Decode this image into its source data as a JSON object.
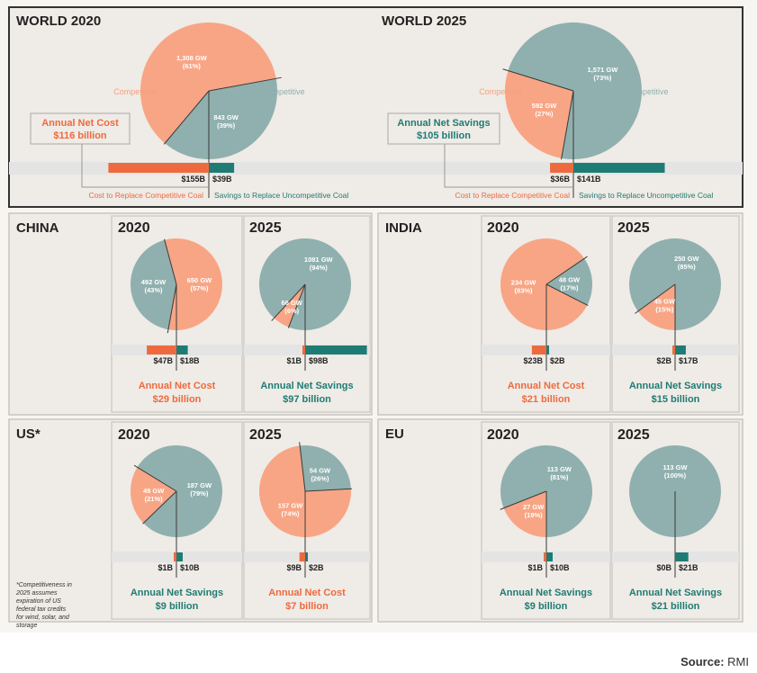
{
  "colors": {
    "competitive": "#f8a585",
    "uncompetitive": "#8fb0ae",
    "cost": "#ee6a3e",
    "savings": "#1e7c74",
    "panel": "#efebe6",
    "stripe": "#e4e4e4",
    "text": "#222222"
  },
  "footer": {
    "source_label": "Source:",
    "source_value": "RMI"
  },
  "panels": [
    {
      "id": "world",
      "label": "",
      "footnote": ""
    },
    {
      "id": "china",
      "label": "CHINA",
      "footnote": ""
    },
    {
      "id": "india",
      "label": "INDIA",
      "footnote": ""
    },
    {
      "id": "us",
      "label": "US*",
      "footnote": "*Competitiveness in 2025 assumes expiration of US federal tax credits for wind, solar, and storage"
    },
    {
      "id": "eu",
      "label": "EU",
      "footnote": ""
    }
  ],
  "chart_data": [
    {
      "type": "pie",
      "region": "WORLD",
      "title": "WORLD 2020",
      "slices": [
        {
          "label": "1,308 GW",
          "pct": "(61%)",
          "value": 1308,
          "share": 61,
          "category": "Competitive"
        },
        {
          "label": "843 GW",
          "pct": "(39%)",
          "value": 843,
          "share": 39,
          "category": "Uncompetitive"
        }
      ],
      "legend": {
        "competitive": "Competitive",
        "uncompetitive": "Uncompetitive"
      },
      "bar": {
        "cost": 155,
        "savings": 39,
        "cost_label": "$155B",
        "savings_label": "$39B",
        "cost_caption": "Cost to Replace Competitive Coal",
        "savings_caption": "Savings to Replace Uncompetitive Coal"
      },
      "net": {
        "kind": "cost",
        "title": "Annual Net Cost",
        "value": "$116 billion"
      }
    },
    {
      "type": "pie",
      "region": "WORLD",
      "title": "WORLD 2025",
      "slices": [
        {
          "label": "592 GW",
          "pct": "(27%)",
          "value": 592,
          "share": 27,
          "category": "Competitive"
        },
        {
          "label": "1,571 GW",
          "pct": "(73%)",
          "value": 1571,
          "share": 73,
          "category": "Uncompetitive"
        }
      ],
      "legend": {
        "competitive": "Competitive",
        "uncompetitive": "Uncompetitive"
      },
      "bar": {
        "cost": 36,
        "savings": 141,
        "cost_label": "$36B",
        "savings_label": "$141B",
        "cost_caption": "Cost to Replace Competitive Coal",
        "savings_caption": "Savings to Replace Uncompetitive Coal"
      },
      "net": {
        "kind": "savings",
        "title": "Annual Net Savings",
        "value": "$105 billion"
      }
    },
    {
      "type": "pie",
      "region": "CHINA",
      "title": "2020",
      "slices": [
        {
          "label": "650 GW",
          "pct": "(57%)",
          "value": 650,
          "share": 57,
          "category": "Competitive"
        },
        {
          "label": "492 GW",
          "pct": "(43%)",
          "value": 492,
          "share": 43,
          "category": "Uncompetitive"
        }
      ],
      "bar": {
        "cost": 47,
        "savings": 18,
        "cost_label": "$47B",
        "savings_label": "$18B"
      },
      "net": {
        "kind": "cost",
        "title": "Annual Net Cost",
        "value": "$29 billion"
      }
    },
    {
      "type": "pie",
      "region": "CHINA",
      "title": "2025",
      "slices": [
        {
          "label": "66 GW",
          "pct": "(6%)",
          "value": 66,
          "share": 6,
          "category": "Competitive"
        },
        {
          "label": "1081 GW",
          "pct": "(94%)",
          "value": 1081,
          "share": 94,
          "category": "Uncompetitive"
        }
      ],
      "bar": {
        "cost": 1,
        "savings": 98,
        "cost_label": "$1B",
        "savings_label": "$98B"
      },
      "net": {
        "kind": "savings",
        "title": "Annual Net Savings",
        "value": "$97 billion"
      }
    },
    {
      "type": "pie",
      "region": "INDIA",
      "title": "2020",
      "slices": [
        {
          "label": "234 GW",
          "pct": "(83%)",
          "value": 234,
          "share": 83,
          "category": "Competitive"
        },
        {
          "label": "48 GW",
          "pct": "(17%)",
          "value": 48,
          "share": 17,
          "category": "Uncompetitive"
        }
      ],
      "bar": {
        "cost": 23,
        "savings": 2,
        "cost_label": "$23B",
        "savings_label": "$2B"
      },
      "net": {
        "kind": "cost",
        "title": "Annual Net Cost",
        "value": "$21 billion"
      }
    },
    {
      "type": "pie",
      "region": "INDIA",
      "title": "2025",
      "slices": [
        {
          "label": "45 GW",
          "pct": "(15%)",
          "value": 45,
          "share": 15,
          "category": "Competitive"
        },
        {
          "label": "250 GW",
          "pct": "(85%)",
          "value": 250,
          "share": 85,
          "category": "Uncompetitive"
        }
      ],
      "bar": {
        "cost": 2,
        "savings": 17,
        "cost_label": "$2B",
        "savings_label": "$17B"
      },
      "net": {
        "kind": "savings",
        "title": "Annual Net Savings",
        "value": "$15 billion"
      }
    },
    {
      "type": "pie",
      "region": "US",
      "title": "2020",
      "slices": [
        {
          "label": "49 GW",
          "pct": "(21%)",
          "value": 49,
          "share": 21,
          "category": "Competitive"
        },
        {
          "label": "187 GW",
          "pct": "(79%)",
          "value": 187,
          "share": 79,
          "category": "Uncompetitive"
        }
      ],
      "bar": {
        "cost": 1,
        "savings": 10,
        "cost_label": "$1B",
        "savings_label": "$10B"
      },
      "net": {
        "kind": "savings",
        "title": "Annual Net Savings",
        "value": "$9 billion"
      }
    },
    {
      "type": "pie",
      "region": "US",
      "title": "2025",
      "slices": [
        {
          "label": "157 GW",
          "pct": "(74%)",
          "value": 157,
          "share": 74,
          "category": "Competitive"
        },
        {
          "label": "54 GW",
          "pct": "(26%)",
          "value": 54,
          "share": 26,
          "category": "Uncompetitive"
        }
      ],
      "bar": {
        "cost": 9,
        "savings": 2,
        "cost_label": "$9B",
        "savings_label": "$2B"
      },
      "net": {
        "kind": "cost",
        "title": "Annual Net Cost",
        "value": "$7 billion"
      }
    },
    {
      "type": "pie",
      "region": "EU",
      "title": "2020",
      "slices": [
        {
          "label": "27 GW",
          "pct": "(19%)",
          "value": 27,
          "share": 19,
          "category": "Competitive"
        },
        {
          "label": "113 GW",
          "pct": "(81%)",
          "value": 113,
          "share": 81,
          "category": "Uncompetitive"
        }
      ],
      "bar": {
        "cost": 1,
        "savings": 10,
        "cost_label": "$1B",
        "savings_label": "$10B"
      },
      "net": {
        "kind": "savings",
        "title": "Annual Net Savings",
        "value": "$9 billion"
      }
    },
    {
      "type": "pie",
      "region": "EU",
      "title": "2025",
      "slices": [
        {
          "label": "",
          "pct": "",
          "value": 0,
          "share": 0,
          "category": "Competitive"
        },
        {
          "label": "113 GW",
          "pct": "(100%)",
          "value": 113,
          "share": 100,
          "category": "Uncompetitive"
        }
      ],
      "bar": {
        "cost": 0,
        "savings": 21,
        "cost_label": "$0B",
        "savings_label": "$21B"
      },
      "net": {
        "kind": "savings",
        "title": "Annual Net Savings",
        "value": "$21 billion"
      }
    }
  ]
}
